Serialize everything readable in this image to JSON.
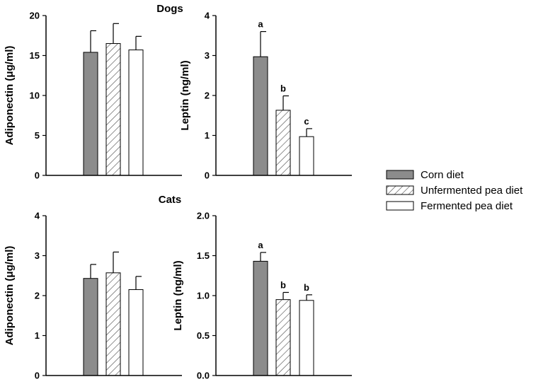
{
  "legend": [
    {
      "label": "Corn diet",
      "fill": "#8c8c8c",
      "pattern": "solid"
    },
    {
      "label": "Unfermented pea diet",
      "fill": "#ffffff",
      "pattern": "hatch"
    },
    {
      "label": "Fermented pea diet",
      "fill": "#ffffff",
      "pattern": "none"
    }
  ],
  "chart_data": [
    {
      "type": "bar",
      "title": "",
      "ylabel": "Adiponectin (μg/ml)",
      "ylim": [
        0,
        20
      ],
      "yticks": [
        "0",
        "5",
        "10",
        "15",
        "20"
      ],
      "categories": [
        "Corn diet",
        "Unfermented pea diet",
        "Fermented pea diet"
      ],
      "values": [
        15.4,
        16.5,
        15.7
      ],
      "errors": [
        2.7,
        2.5,
        1.7
      ],
      "annotations": [
        "",
        "",
        ""
      ]
    },
    {
      "type": "bar",
      "title": "Dogs",
      "ylabel": "Leptin (ng/ml)",
      "ylim": [
        0,
        4
      ],
      "yticks": [
        "0",
        "1",
        "2",
        "3",
        "4"
      ],
      "categories": [
        "Corn diet",
        "Unfermented pea diet",
        "Fermented pea diet"
      ],
      "values": [
        2.97,
        1.63,
        0.97
      ],
      "errors": [
        0.63,
        0.36,
        0.2
      ],
      "annotations": [
        "a",
        "b",
        "c"
      ]
    },
    {
      "type": "bar",
      "title": "",
      "ylabel": "Adiponectin (μg/ml)",
      "ylim": [
        0,
        4
      ],
      "yticks": [
        "0",
        "1",
        "2",
        "3",
        "4"
      ],
      "categories": [
        "Corn diet",
        "Unfermented pea diet",
        "Fermented pea diet"
      ],
      "values": [
        2.43,
        2.57,
        2.15
      ],
      "errors": [
        0.35,
        0.52,
        0.33
      ],
      "annotations": [
        "",
        "",
        ""
      ]
    },
    {
      "type": "bar",
      "title": "Cats",
      "ylabel": "Leptin (ng/ml)",
      "ylim": [
        0,
        2
      ],
      "yticks": [
        "0.0",
        "0.5",
        "1.0",
        "1.5",
        "2.0"
      ],
      "categories": [
        "Corn diet",
        "Unfermented pea diet",
        "Fermented pea diet"
      ],
      "values": [
        1.43,
        0.95,
        0.94
      ],
      "errors": [
        0.11,
        0.09,
        0.07
      ],
      "annotations": [
        "a",
        "b",
        "b"
      ]
    }
  ]
}
